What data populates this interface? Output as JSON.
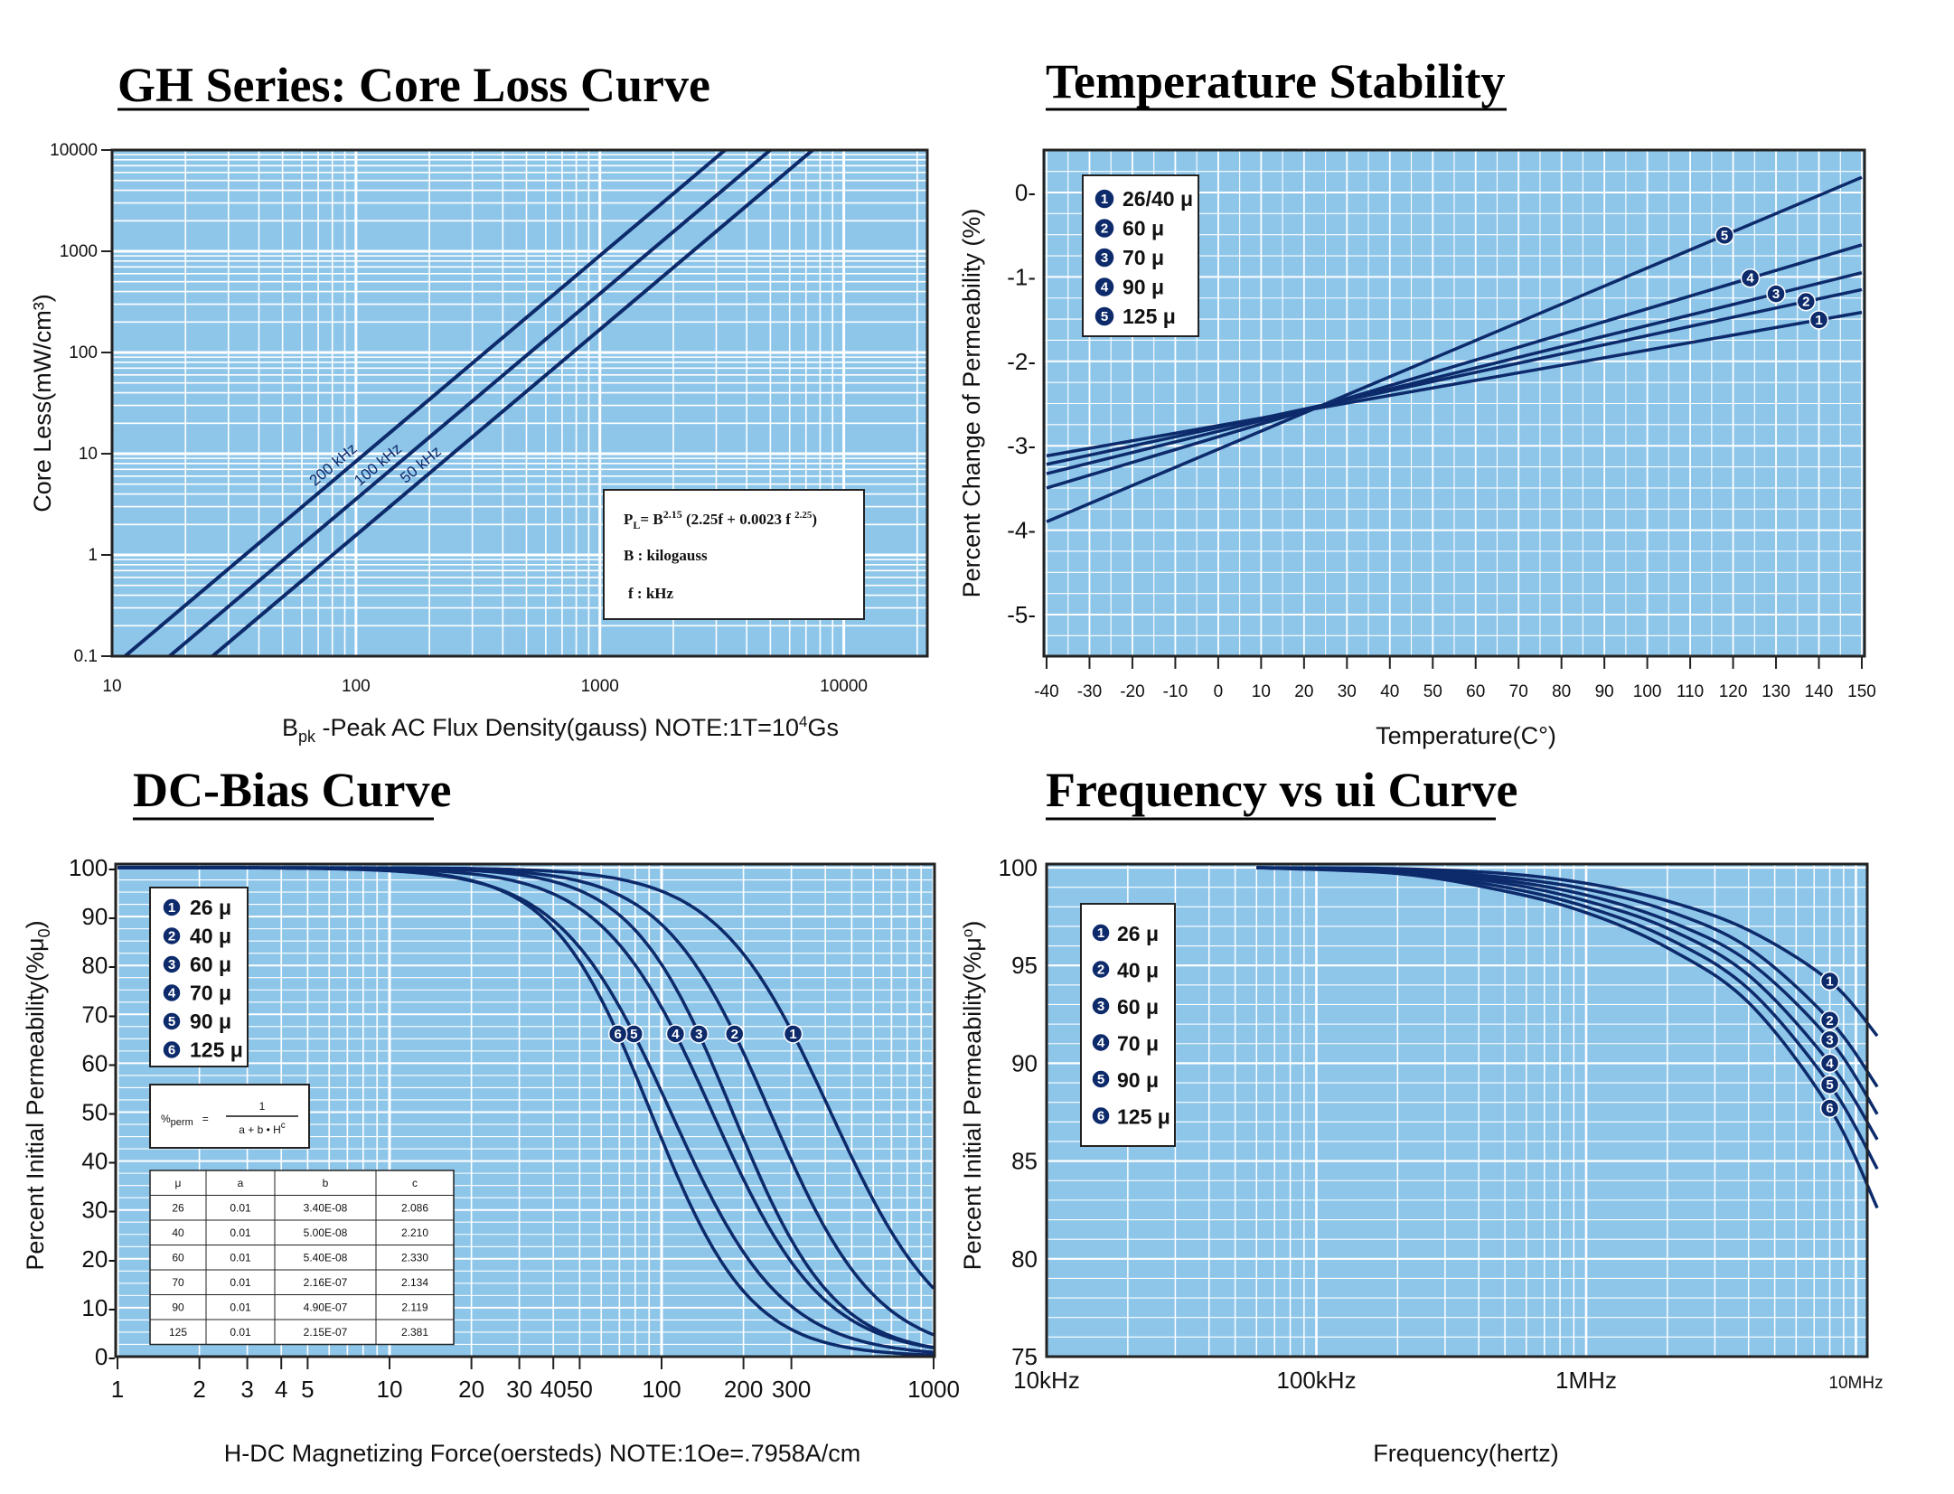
{
  "colors": {
    "plot_bg": "#8ec6ea",
    "grid": "#ffffff",
    "curve": "#0d2a6b",
    "frame": "#222222",
    "marker": "#0d2a6b"
  },
  "chart_data": [
    {
      "id": "core-loss",
      "type": "line",
      "title": "GH Series: Core Loss Curve",
      "xlabel": "B",
      "xlabel_sub": "pk",
      "xlabel_rest": " -Peak AC Flux Density(gauss)  NOTE:1T=10",
      "xlabel_sup": "4",
      "xlabel_end": "Gs",
      "ylabel": "Core Less(mW/cm³)",
      "xscale": "log",
      "yscale": "log",
      "xlim": [
        10,
        22000
      ],
      "ylim": [
        0.1,
        10000
      ],
      "x_ticks": [
        "10",
        "100",
        "1000",
        "10000"
      ],
      "y_ticks": [
        "0.1",
        "1",
        "10",
        "100",
        "1000",
        "10000"
      ],
      "series": [
        {
          "name": "200 kHz",
          "x": [
            11.3,
            3260
          ],
          "y": [
            0.1,
            10000
          ]
        },
        {
          "name": "100 kHz",
          "x": [
            17.2,
            5000
          ],
          "y": [
            0.1,
            10000
          ]
        },
        {
          "name": "50 kHz",
          "x": [
            25.8,
            7460
          ],
          "y": [
            0.1,
            10000
          ]
        }
      ],
      "formula": {
        "line1": "P",
        "line1_sub": "L",
        "line1_mid": "= B",
        "line1_sup": "2.15",
        "line1_rest": " (2.25f + 0.0023 f ",
        "line1_sup2": "2.25",
        "line1_end": ")",
        "line2": "B : kilogauss",
        "line3": "f  : kHz"
      }
    },
    {
      "id": "temp-stability",
      "type": "line",
      "title": "Temperature Stability",
      "xlabel": "Temperature(C°)",
      "ylabel": "Percent Change of Permeability (%)",
      "xlim": [
        -40,
        150
      ],
      "ylim": [
        -5.5,
        0.5
      ],
      "x_ticks": [
        "-40",
        "-30",
        "-20",
        "-10",
        "0",
        "10",
        "20",
        "30",
        "40",
        "50",
        "60",
        "70",
        "80",
        "90",
        "100",
        "110",
        "120",
        "130",
        "140",
        "150"
      ],
      "y_ticks": [
        "0-",
        "-1-",
        "-2-",
        "-3-",
        "-4-",
        "-5-"
      ],
      "series": [
        {
          "name": "26/40 μ",
          "marker": "1",
          "x": [
            -40,
            150
          ],
          "y": [
            -3.12,
            -1.42
          ]
        },
        {
          "name": "60 μ",
          "marker": "2",
          "x": [
            -40,
            150
          ],
          "y": [
            -3.22,
            -1.15
          ]
        },
        {
          "name": "70 μ",
          "marker": "3",
          "x": [
            -40,
            150
          ],
          "y": [
            -3.33,
            -0.95
          ]
        },
        {
          "name": "90 μ",
          "marker": "4",
          "x": [
            -40,
            150
          ],
          "y": [
            -3.5,
            -0.62
          ]
        },
        {
          "name": "125 μ",
          "marker": "5",
          "x": [
            -40,
            150
          ],
          "y": [
            -3.9,
            0.18
          ]
        }
      ]
    },
    {
      "id": "dc-bias",
      "type": "line",
      "title": "DC-Bias Curve",
      "xlabel": "H-DC Magnetizing Force(oersteds) NOTE:1Oe=.7958A/cm",
      "ylabel": "Percent Initial Permeability(%μ",
      "ylabel_sub": "0",
      "ylabel_end": ")",
      "xscale": "log",
      "xlim": [
        1,
        1000
      ],
      "ylim": [
        0,
        100
      ],
      "x_ticks": [
        "1",
        "2",
        "3",
        "4",
        "5",
        "10",
        "20",
        "30",
        "40",
        "50",
        "100",
        "200",
        "300",
        "1000"
      ],
      "y_ticks": [
        "0-",
        "10-",
        "20-",
        "30-",
        "40-",
        "50-",
        "60-",
        "70-",
        "80-",
        "90-",
        "100-"
      ],
      "series": [
        {
          "name": "26 μ",
          "marker": "1",
          "a": 0.01,
          "b": 3.4e-08,
          "c": 2.086
        },
        {
          "name": "40 μ",
          "marker": "2",
          "a": 0.01,
          "b": 5e-08,
          "c": 2.21
        },
        {
          "name": "60 μ",
          "marker": "3",
          "a": 0.01,
          "b": 5.4e-08,
          "c": 2.33
        },
        {
          "name": "70 μ",
          "marker": "4",
          "a": 0.01,
          "b": 2.16e-07,
          "c": 2.134
        },
        {
          "name": "90 μ",
          "marker": "5",
          "a": 0.01,
          "b": 4.9e-07,
          "c": 2.119
        },
        {
          "name": "125 μ",
          "marker": "6",
          "a": 0.01,
          "b": 2.15e-07,
          "c": 2.381
        }
      ],
      "formula": {
        "lhs": "%",
        "lhs_sub": "perm",
        "eq": "=",
        "num": "1",
        "den": "a + b • H",
        "den_sup": "c"
      },
      "table": {
        "headers": [
          "μ",
          "a",
          "b",
          "c"
        ],
        "rows": [
          [
            "26",
            "0.01",
            "3.40E-08",
            "2.086"
          ],
          [
            "40",
            "0.01",
            "5.00E-08",
            "2.210"
          ],
          [
            "60",
            "0.01",
            "5.40E-08",
            "2.330"
          ],
          [
            "70",
            "0.01",
            "2.16E-07",
            "2.134"
          ],
          [
            "90",
            "0.01",
            "4.90E-07",
            "2.119"
          ],
          [
            "125",
            "0.01",
            "2.15E-07",
            "2.381"
          ]
        ]
      }
    },
    {
      "id": "freq-ui",
      "type": "line",
      "title": "Frequency vs ui Curve",
      "xlabel": "Frequency(hertz)",
      "ylabel": "Percent Initial Permeability(%μ",
      "ylabel_sup": "o",
      "ylabel_end": ")",
      "xscale": "log",
      "xlim": [
        10000,
        12000000
      ],
      "ylim": [
        75,
        100
      ],
      "x_ticks": [
        "10kHz",
        "100kHz",
        "1MHz",
        "10MHz"
      ],
      "y_ticks": [
        "75",
        "80",
        "85",
        "90",
        "95",
        "100"
      ],
      "series": [
        {
          "name": "26 μ",
          "marker": "1",
          "x": [
            60000,
            200000,
            500000,
            1000000,
            2000000,
            4000000,
            8000000,
            12000000
          ],
          "y": [
            100,
            99.95,
            99.7,
            99.2,
            98.3,
            96.8,
            94.2,
            91.4
          ]
        },
        {
          "name": "40 μ",
          "marker": "2",
          "x": [
            60000,
            200000,
            500000,
            1000000,
            2000000,
            4000000,
            8000000,
            12000000
          ],
          "y": [
            100,
            99.9,
            99.5,
            98.9,
            97.8,
            95.9,
            92.2,
            88.8
          ]
        },
        {
          "name": "60 μ",
          "marker": "3",
          "x": [
            60000,
            200000,
            500000,
            1000000,
            2000000,
            4000000,
            8000000,
            12000000
          ],
          "y": [
            100,
            99.85,
            99.35,
            98.6,
            97.3,
            95.2,
            91.2,
            87.4
          ]
        },
        {
          "name": "70 μ",
          "marker": "4",
          "x": [
            60000,
            200000,
            500000,
            1000000,
            2000000,
            4000000,
            8000000,
            12000000
          ],
          "y": [
            100,
            99.8,
            99.2,
            98.3,
            96.9,
            94.5,
            90.0,
            86.1
          ]
        },
        {
          "name": "90 μ",
          "marker": "5",
          "x": [
            60000,
            200000,
            500000,
            1000000,
            2000000,
            4000000,
            8000000,
            12000000
          ],
          "y": [
            100,
            99.75,
            99.0,
            98.0,
            96.4,
            93.8,
            88.9,
            84.6
          ]
        },
        {
          "name": "125 μ",
          "marker": "6",
          "x": [
            60000,
            200000,
            500000,
            1000000,
            2000000,
            4000000,
            8000000,
            12000000
          ],
          "y": [
            100,
            99.7,
            98.8,
            97.7,
            95.9,
            93.1,
            87.7,
            82.6
          ]
        }
      ]
    }
  ]
}
